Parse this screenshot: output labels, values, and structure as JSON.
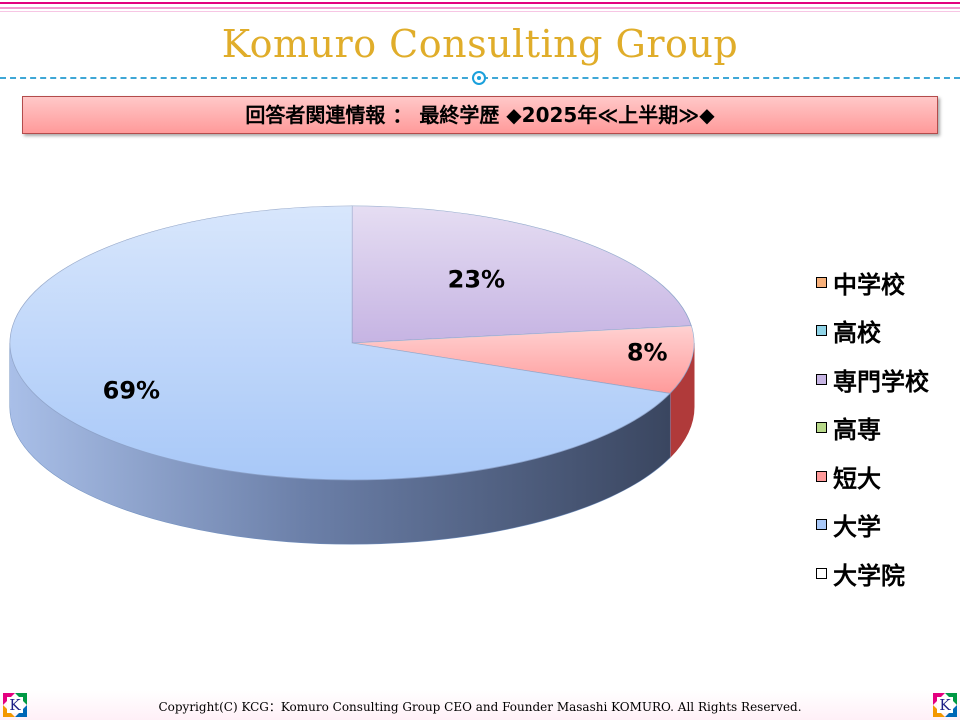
{
  "header": {
    "brand_title": "Komuro Consulting Group"
  },
  "banner": {
    "text": "回答者関連情報 ： 最終学歴 ◆2025年≪上半期≫◆"
  },
  "chart_data": {
    "type": "pie",
    "style": "3d",
    "legend_position": "right",
    "categories": [
      "中学校",
      "高校",
      "専門学校",
      "高専",
      "短大",
      "大学",
      "大学院"
    ],
    "values": [
      0,
      0,
      23,
      0,
      8,
      69,
      0
    ],
    "data_labels": [
      "",
      "",
      "23%",
      "",
      "8%",
      "69%",
      ""
    ],
    "colors": [
      "#f7b07a",
      "#8fd3e6",
      "#c6b4e3",
      "#b8d98a",
      "#ff9a9a",
      "#a8c8f8",
      "#ffffff"
    ],
    "side_colors": [
      "#c07840",
      "#4f97aa",
      "#8f7cb0",
      "#7fa352",
      "#b03a3a",
      "#6f8fbf",
      "#999999"
    ]
  },
  "footer": {
    "copyright": "Copyright(C) KCG：Komuro Consulting Group CEO and Founder Masashi KOMURO. All Rights Reserved.",
    "logo_letter": "K"
  }
}
